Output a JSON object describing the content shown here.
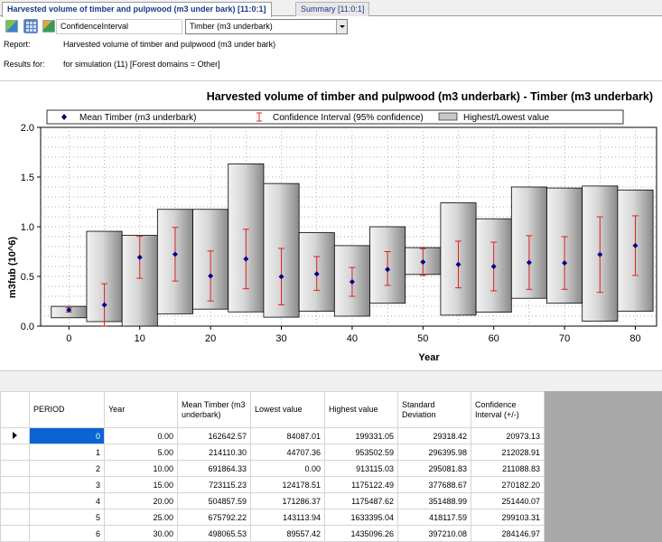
{
  "tabs": [
    {
      "label": "Harvested volume of timber and pulpwood (m3 under bark) [11:0:1]",
      "active": true
    },
    {
      "label": "Summary [11:0:1]",
      "active": false
    }
  ],
  "toolbar": {
    "icons": [
      "chart-image-icon",
      "grid-icon",
      "chart-series-icon"
    ],
    "type_select_value": "ConfidenceInterval",
    "series_select_value": "Timber (m3 underbark)"
  },
  "info": {
    "report_label": "Report:",
    "report_value": "Harvested volume of timber and pulpwood (m3 under bark)",
    "results_label": "Results for:",
    "results_value": "for simulation (11)  [Forest domains = Other]"
  },
  "chart_data": {
    "type": "scatter",
    "title": "Harvested volume of timber and pulpwood (m3 underbark) - Timber (m3 underbark)",
    "xlabel": "Year",
    "ylabel": "m3fub (10^6)",
    "xlim": [
      -4,
      83
    ],
    "ylim": [
      0,
      2.0
    ],
    "x_ticks": [
      0,
      10,
      20,
      30,
      40,
      50,
      60,
      70,
      80
    ],
    "y_ticks": [
      0.0,
      0.5,
      1.0,
      1.5,
      2.0
    ],
    "y_tick_labels": [
      "0.0",
      "0.5",
      "1.0",
      "1.5",
      "2.0"
    ],
    "grid": "dotted",
    "legend_position": "top",
    "legend": [
      {
        "name": "Mean Timber (m3 underbark)",
        "marker": "diamond",
        "color": "#00008b"
      },
      {
        "name": "Confidence Interval (95% confidence)",
        "marker": "errorbar",
        "color": "#e02020"
      },
      {
        "name": "Highest/Lowest value",
        "marker": "box",
        "color": "#bdbdbd"
      }
    ],
    "x": [
      0,
      5,
      10,
      15,
      20,
      25,
      30,
      35,
      40,
      45,
      50,
      55,
      60,
      65,
      70,
      75,
      80
    ],
    "mean": [
      0.163,
      0.214,
      0.692,
      0.723,
      0.505,
      0.676,
      0.498,
      0.525,
      0.445,
      0.57,
      0.645,
      0.62,
      0.6,
      0.64,
      0.635,
      0.72,
      0.81
    ],
    "ci_low": [
      0.142,
      0.002,
      0.481,
      0.453,
      0.253,
      0.376,
      0.214,
      0.36,
      0.3,
      0.41,
      0.51,
      0.385,
      0.355,
      0.37,
      0.37,
      0.34,
      0.51
    ],
    "ci_high": [
      0.184,
      0.426,
      0.903,
      0.993,
      0.756,
      0.975,
      0.782,
      0.7,
      0.59,
      0.75,
      0.78,
      0.855,
      0.845,
      0.91,
      0.9,
      1.1,
      1.11
    ],
    "lowest": [
      0.084,
      0.045,
      0.0,
      0.124,
      0.171,
      0.143,
      0.09,
      0.15,
      0.1,
      0.23,
      0.52,
      0.11,
      0.14,
      0.28,
      0.23,
      0.05,
      0.15
    ],
    "highest": [
      0.199,
      0.954,
      0.913,
      1.175,
      1.175,
      1.633,
      1.435,
      0.94,
      0.81,
      1.0,
      0.79,
      1.24,
      1.08,
      1.4,
      1.39,
      1.41,
      1.37
    ],
    "colors": {
      "mean": "#00008b",
      "ci": "#e02020",
      "box_stroke": "#000000",
      "box_fill": "#c8c8c8"
    }
  },
  "table": {
    "columns": [
      "",
      "PERIOD",
      "Year",
      "Mean Timber (m3 underbark)",
      "Lowest value",
      "Highest value",
      "Standard Deviation",
      "Confidence Interval (+/-)"
    ],
    "rows": [
      [
        "0",
        "0.00",
        "162642.57",
        "84087.01",
        "199331.05",
        "29318.42",
        "20973.13"
      ],
      [
        "1",
        "5.00",
        "214110.30",
        "44707.36",
        "953502.59",
        "296395.98",
        "212028.91"
      ],
      [
        "2",
        "10.00",
        "691864.33",
        "0.00",
        "913115.03",
        "295081.83",
        "211088.83"
      ],
      [
        "3",
        "15.00",
        "723115.23",
        "124178.51",
        "1175122.49",
        "377688.67",
        "270182.20"
      ],
      [
        "4",
        "20.00",
        "504857.59",
        "171286.37",
        "1175487.62",
        "351488.99",
        "251440.07"
      ],
      [
        "5",
        "25.00",
        "675792.22",
        "143113.94",
        "1633395.04",
        "418117.59",
        "299103.31"
      ],
      [
        "6",
        "30.00",
        "498065.53",
        "89557.42",
        "1435096.26",
        "397210.08",
        "284146.97"
      ]
    ],
    "selected_row": 0
  }
}
